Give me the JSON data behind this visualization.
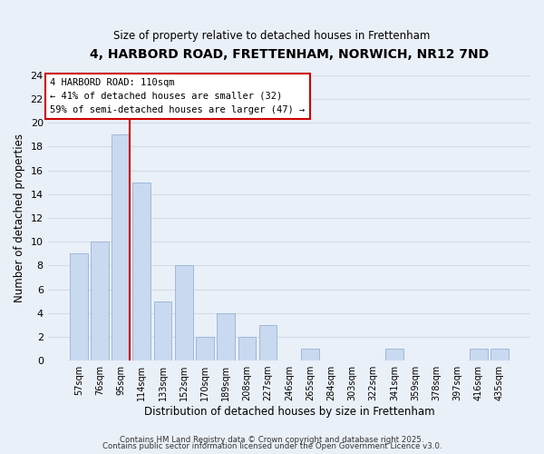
{
  "title": "4, HARBORD ROAD, FRETTENHAM, NORWICH, NR12 7ND",
  "subtitle": "Size of property relative to detached houses in Frettenham",
  "xlabel": "Distribution of detached houses by size in Frettenham",
  "ylabel": "Number of detached properties",
  "bar_labels": [
    "57sqm",
    "76sqm",
    "95sqm",
    "114sqm",
    "133sqm",
    "152sqm",
    "170sqm",
    "189sqm",
    "208sqm",
    "227sqm",
    "246sqm",
    "265sqm",
    "284sqm",
    "303sqm",
    "322sqm",
    "341sqm",
    "359sqm",
    "378sqm",
    "397sqm",
    "416sqm",
    "435sqm"
  ],
  "bar_values": [
    9,
    10,
    19,
    15,
    5,
    8,
    2,
    4,
    2,
    3,
    0,
    1,
    0,
    0,
    0,
    1,
    0,
    0,
    0,
    1,
    1
  ],
  "bar_color": "#c9d9f0",
  "bar_edge_color": "#a0b8d8",
  "vline_color": "#cc0000",
  "vline_xindex": 2.42,
  "annotation_title": "4 HARBORD ROAD: 110sqm",
  "annotation_line1": "← 41% of detached houses are smaller (32)",
  "annotation_line2": "59% of semi-detached houses are larger (47) →",
  "annotation_box_color": "#ffffff",
  "annotation_box_edge": "#cc0000",
  "grid_color": "#d0dce8",
  "background_color": "#eaf0f8",
  "ylim": [
    0,
    24
  ],
  "yticks": [
    0,
    2,
    4,
    6,
    8,
    10,
    12,
    14,
    16,
    18,
    20,
    22,
    24
  ],
  "footer1": "Contains HM Land Registry data © Crown copyright and database right 2025.",
  "footer2": "Contains public sector information licensed under the Open Government Licence v3.0."
}
